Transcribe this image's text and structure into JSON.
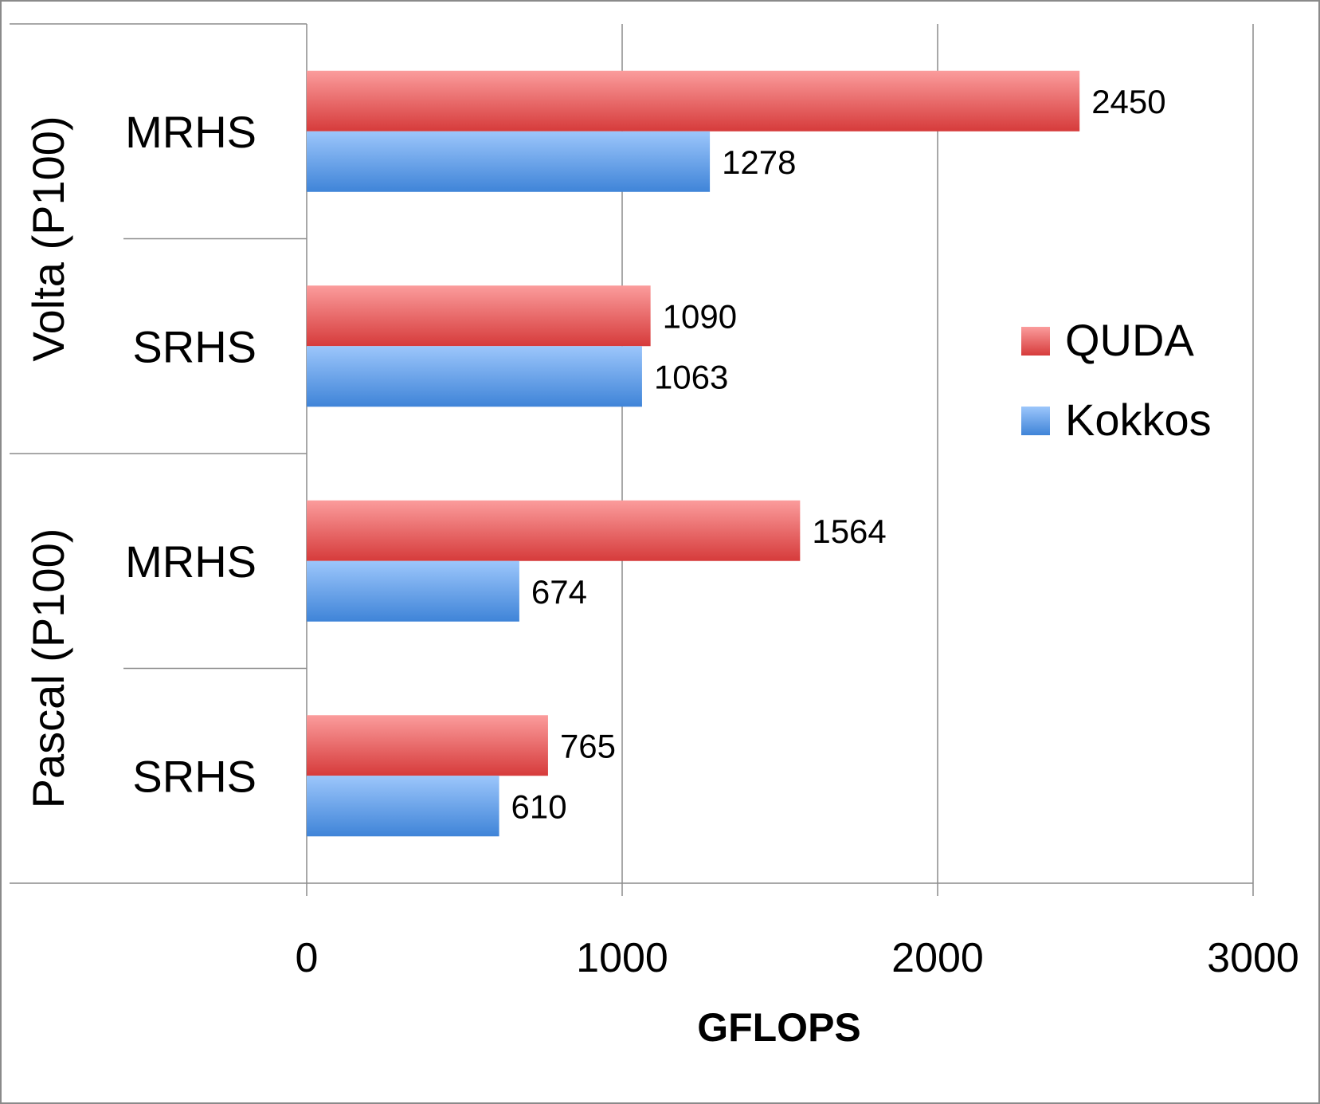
{
  "chart_data": {
    "type": "bar",
    "orientation": "horizontal",
    "xlabel": "GFLOPS",
    "xlim": [
      0,
      3000
    ],
    "xticks": [
      0,
      1000,
      2000,
      3000
    ],
    "xtick_labels": [
      "0",
      "1000",
      "2000",
      "3000"
    ],
    "grid": true,
    "legend_position": "right",
    "groups": [
      {
        "label": "Volta (P100)",
        "categories": [
          "MRHS",
          "SRHS"
        ]
      },
      {
        "label": "Pascal (P100)",
        "categories": [
          "MRHS",
          "SRHS"
        ]
      }
    ],
    "series": [
      {
        "name": "QUDA",
        "color": "#e04848",
        "values": [
          2450,
          1090,
          1564,
          765
        ]
      },
      {
        "name": "Kokkos",
        "color": "#4a8ee0",
        "values": [
          1278,
          1063,
          674,
          610
        ]
      }
    ]
  }
}
